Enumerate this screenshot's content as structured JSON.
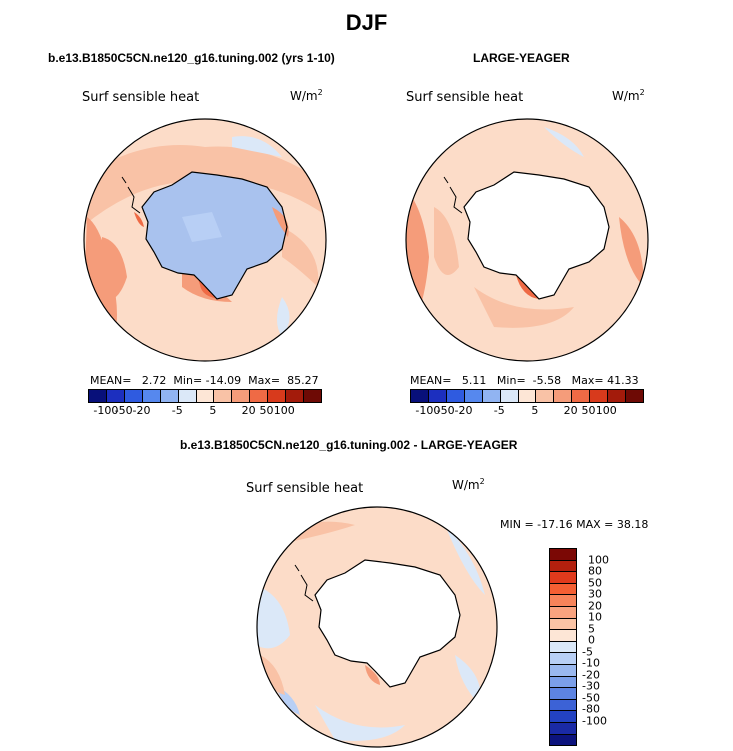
{
  "title": "DJF",
  "panels": [
    {
      "id": "model",
      "title": "b.e13.B1850C5CN.ne120_g16.tuning.002 (yrs 1-10)",
      "variable": "Surf sensible heat",
      "units_base": "W/m",
      "units_exp": "2",
      "stats": {
        "mean_label": "MEAN=",
        "mean": "2.72",
        "min_label": "Min=",
        "min": "-14.09",
        "max_label": "Max=",
        "max": "85.27"
      },
      "land_fill": "#a9c2ee"
    },
    {
      "id": "obs",
      "title": "LARGE-YEAGER",
      "variable": "Surf sensible heat",
      "units_base": "W/m",
      "units_exp": "2",
      "stats": {
        "mean_label": "MEAN=",
        "mean": "5.11",
        "min_label": "Min=",
        "min": "-5.58",
        "max_label": "Max=",
        "max": "41.33"
      },
      "land_fill": "#ffffff"
    },
    {
      "id": "diff",
      "title": "b.e13.B1850C5CN.ne120_g16.tuning.002 - LARGE-YEAGER",
      "variable": "Surf sensible heat",
      "units_base": "W/m",
      "units_exp": "2",
      "stats_text": "MIN = -17.16  MAX =  38.18",
      "land_fill": "#ffffff"
    }
  ],
  "colorbar_horizontal": {
    "colors": [
      "#08107a",
      "#1c2fbf",
      "#2f5be0",
      "#5688ee",
      "#91b4f2",
      "#dbe8f8",
      "#fde6d6",
      "#f9c2a6",
      "#f59c7a",
      "#ef6a45",
      "#d83a1c",
      "#a31b0b",
      "#6e0a05"
    ],
    "labels": [
      "-100",
      "-50",
      "-20",
      "-5",
      "5",
      "20",
      "50",
      "100"
    ]
  },
  "colorbar_vertical": {
    "colors": [
      "#7b0805",
      "#b3200e",
      "#e03a1c",
      "#f45f33",
      "#f7845a",
      "#f9a37f",
      "#fbc4a5",
      "#fde6d6",
      "#dbe8f8",
      "#b8cff5",
      "#9ab8ef",
      "#7b9fe9",
      "#5d84e2",
      "#3c62d6",
      "#2342c2",
      "#1a2aa6",
      "#0c137d"
    ],
    "labels": [
      "100",
      "80",
      "50",
      "30",
      "20",
      "10",
      "5",
      "0",
      "-5",
      "-10",
      "-20",
      "-30",
      "-50",
      "-80",
      "-100"
    ]
  },
  "map_colors": {
    "ocean_base": "#fcdcc8",
    "warm_light": "#f9c2a6",
    "warm_mid": "#f59c7a",
    "warm_strong": "#ef6a45",
    "warm_dark": "#c0301a",
    "cool_light": "#dbe8f8",
    "cool_mid": "#b8cff5",
    "coast": "#000000"
  }
}
